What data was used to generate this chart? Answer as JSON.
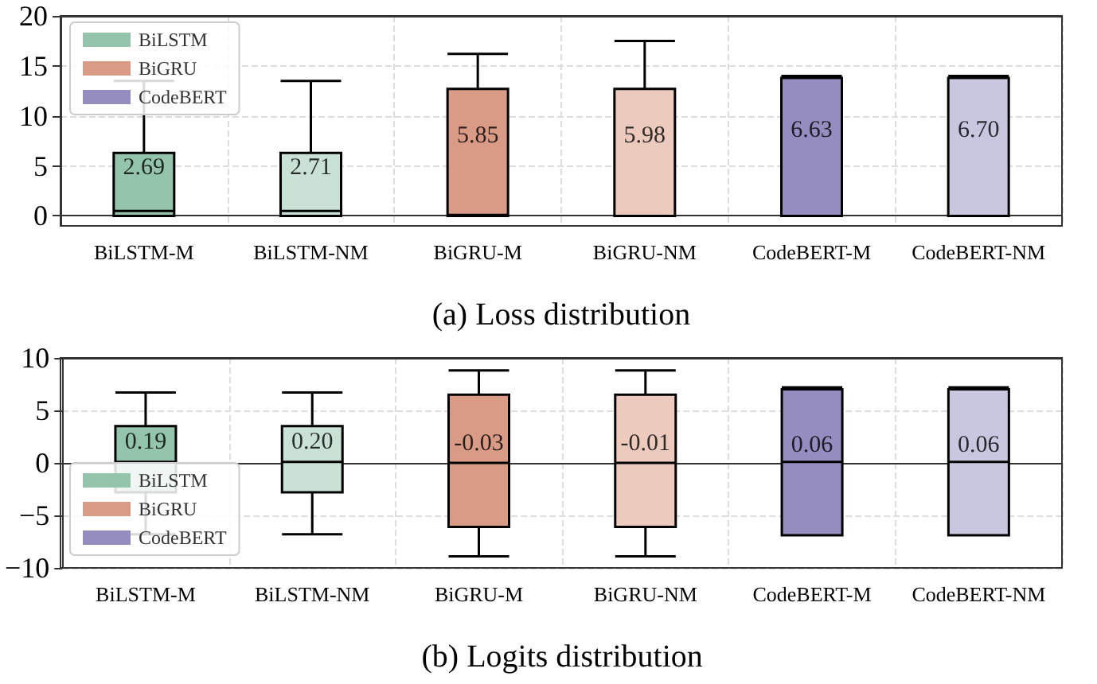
{
  "chart_data": [
    {
      "type": "box",
      "xlabel": "(a) Loss distribution",
      "categories": [
        "BiLSTM-M",
        "BiLSTM-NM",
        "BiGRU-M",
        "BiGRU-NM",
        "CodeBERT-M",
        "CodeBERT-NM"
      ],
      "ylim": [
        -1,
        20
      ],
      "yticks": [
        0,
        5,
        10,
        15,
        20
      ],
      "grid": true,
      "legend": "top left",
      "series": [
        {
          "name": "BiLSTM",
          "color": "#94c4ab",
          "colors": [
            "#94c4ab",
            "#c9e2d5",
            null,
            null,
            null,
            null
          ],
          "boxes": [
            {
              "low": 0,
              "q1": 0,
              "median": 0.5,
              "q3": 6.3,
              "high": 13.5
            },
            {
              "low": 0,
              "q1": 0,
              "median": 0.5,
              "q3": 6.3,
              "high": 13.5
            },
            null,
            null,
            null,
            null
          ]
        },
        {
          "name": "BiGRU",
          "color": "#d99b85",
          "colors": [
            null,
            null,
            "#d99b85",
            "#eccabe",
            null,
            null
          ],
          "boxes": [
            null,
            null,
            {
              "low": 0,
              "q1": 0,
              "median": 0.1,
              "q3": 12.7,
              "high": 16.2
            },
            {
              "low": 0,
              "q1": 0,
              "median": 0,
              "q3": 12.7,
              "high": 17.5
            },
            null,
            null
          ]
        },
        {
          "name": "CodeBERT",
          "color": "#958dc0",
          "colors": [
            null,
            null,
            null,
            null,
            "#958dc0",
            "#c9c6e0"
          ],
          "boxes": [
            null,
            null,
            null,
            null,
            {
              "low": 0,
              "q1": 0,
              "median": 0,
              "q3": 13.8,
              "high": 14
            },
            {
              "low": 0,
              "q1": 0,
              "median": 0,
              "q3": 13.8,
              "high": 14
            }
          ]
        }
      ],
      "annotations": [
        "2.69",
        "2.71",
        "5.85",
        "5.98",
        "6.63",
        "6.70"
      ]
    },
    {
      "type": "box",
      "xlabel": "(b) Logits distribution",
      "categories": [
        "BiLSTM-M",
        "BiLSTM-NM",
        "BiGRU-M",
        "BiGRU-NM",
        "CodeBERT-M",
        "CodeBERT-NM"
      ],
      "ylim": [
        -10,
        10
      ],
      "yticks": [
        {
          "value": -10,
          "label": "−10"
        },
        {
          "value": -5,
          "label": "−5"
        },
        0,
        5,
        10
      ],
      "grid": true,
      "legend": "bottom left",
      "series": [
        {
          "name": "BiLSTM",
          "color": "#94c4ab",
          "colors": [
            "#94c4ab",
            "#c9e2d5",
            null,
            null,
            null,
            null
          ],
          "boxes": [
            {
              "low": -6.8,
              "q1": -2.8,
              "median": 0.1,
              "q3": 3.5,
              "high": 6.7
            },
            {
              "low": -6.8,
              "q1": -2.8,
              "median": 0.1,
              "q3": 3.5,
              "high": 6.7
            },
            null,
            null,
            null,
            null
          ]
        },
        {
          "name": "BiGRU",
          "color": "#d99b85",
          "colors": [
            null,
            null,
            "#d99b85",
            "#eccabe",
            null,
            null
          ],
          "boxes": [
            null,
            null,
            {
              "low": -8.9,
              "q1": -6.1,
              "median": 0,
              "q3": 6.5,
              "high": 8.8
            },
            {
              "low": -8.9,
              "q1": -6.1,
              "median": 0,
              "q3": 6.5,
              "high": 8.8
            },
            null,
            null
          ]
        },
        {
          "name": "CodeBERT",
          "color": "#958dc0",
          "colors": [
            null,
            null,
            null,
            null,
            "#958dc0",
            "#c9c6e0"
          ],
          "boxes": [
            null,
            null,
            null,
            null,
            {
              "low": -6.9,
              "q1": -6.9,
              "median": 0.1,
              "q3": 7.0,
              "high": 7.2
            },
            {
              "low": -6.9,
              "q1": -6.9,
              "median": 0.1,
              "q3": 7.0,
              "high": 7.2
            }
          ]
        }
      ],
      "annotations": [
        "0.19",
        "0.20",
        "-0.03",
        "-0.01",
        "0.06",
        "0.06"
      ]
    }
  ]
}
